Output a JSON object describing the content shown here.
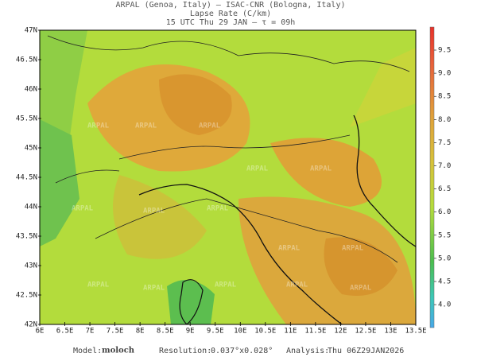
{
  "header": {
    "line1": "ARPAL (Genoa, Italy)  –  ISAC-CNR (Bologna, Italy)",
    "line2": "Lapse Rate (C/km)",
    "line3": "15 UTC Thu 29 JAN  –  τ = 09h"
  },
  "map": {
    "lat_labels": [
      "47N",
      "46.5N",
      "46N",
      "45.5N",
      "45N",
      "44.5N",
      "44N",
      "43.5N",
      "43N",
      "42.5N",
      "42N"
    ],
    "lon_labels": [
      "6E",
      "6.5E",
      "7E",
      "7.5E",
      "8E",
      "8.5E",
      "9E",
      "9.5E",
      "10E",
      "10.5E",
      "11E",
      "11.5E",
      "12E",
      "12.5E",
      "13E",
      "13.5E"
    ],
    "watermark": "ARPAL"
  },
  "colorbar": {
    "ticks": [
      "9.5",
      "9.0",
      "8.5",
      "8.0",
      "7.5",
      "7.0",
      "6.5",
      "6.0",
      "5.5",
      "5.0",
      "4.5",
      "4.0"
    ]
  },
  "footer": {
    "model_label": "Model:",
    "model": "moloch",
    "resolution_label": "Resolution:",
    "resolution": "0.037°x0.028°",
    "analysis_label": "Analysis:",
    "analysis": "Thu 06Z29JAN2026"
  }
}
